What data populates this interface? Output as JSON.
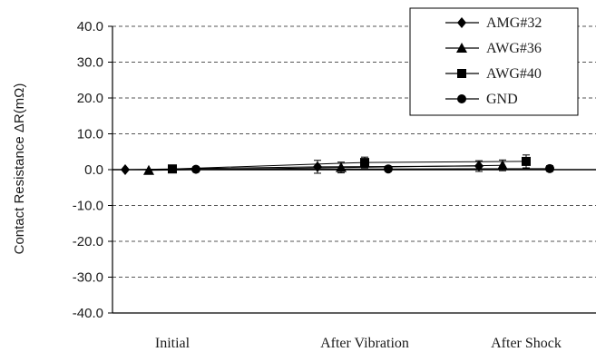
{
  "chart_data": {
    "type": "line",
    "categories": [
      "Initial",
      "After Vibration",
      "After Shock"
    ],
    "ylabel": "Contact Resistance ΔR(mΩ)",
    "xlabel": "",
    "ylim": [
      -40,
      40
    ],
    "yticks": [
      40,
      30,
      20,
      10,
      0,
      -10,
      -20,
      -30,
      -40
    ],
    "ytick_labels": [
      "40.0",
      "30.0",
      "20.0",
      "10.0",
      "0.0",
      "-10.0",
      "-20.0",
      "-30.0",
      "-40.0"
    ],
    "grid": "horizontal dashed",
    "legend_position": "top-right",
    "series": [
      {
        "name": "AMG#32",
        "marker": "diamond",
        "values": [
          0.0,
          0.8,
          1.0
        ],
        "error": [
          0.0,
          1.8,
          1.5
        ]
      },
      {
        "name": "AWG#36",
        "marker": "triangle",
        "values": [
          -0.2,
          0.6,
          1.2
        ],
        "error": [
          0.0,
          1.5,
          1.5
        ]
      },
      {
        "name": "AWG#40",
        "marker": "square",
        "values": [
          0.2,
          2.0,
          2.3
        ],
        "error": [
          0.0,
          1.5,
          1.8
        ]
      },
      {
        "name": "GND",
        "marker": "circle",
        "values": [
          0.1,
          0.2,
          0.3
        ],
        "error": [
          0.0,
          0.0,
          0.8
        ]
      }
    ],
    "colors": {
      "series": "#000000",
      "grid": "#555555",
      "axis": "#000000"
    }
  }
}
